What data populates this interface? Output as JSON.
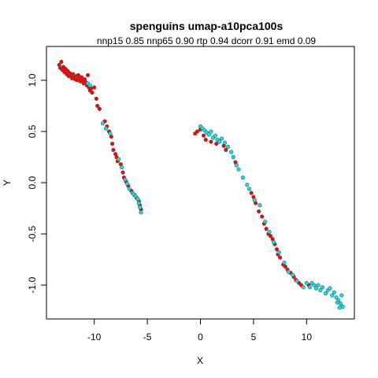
{
  "chart_data": {
    "type": "scatter",
    "title": "spenguins umap-a10pca100s",
    "subtitle": "nnp15 0.85 nnp65 0.90 rtp 0.94 dcorr 0.91 emd 0.09",
    "xlabel": "X",
    "ylabel": "Y",
    "xlim": [
      -14.5,
      14.5
    ],
    "ylim": [
      -1.33,
      1.33
    ],
    "xticks": [
      -10,
      -5,
      0,
      5,
      10
    ],
    "yticks": [
      -1.0,
      -0.5,
      0.0,
      0.5,
      1.0
    ],
    "grid": false,
    "colors": {
      "red": "#ff0000",
      "cyan": "#00e5ee",
      "edge": "#555555"
    },
    "series": [
      {
        "color": "red",
        "points": [
          [
            -13.3,
            1.15
          ],
          [
            -13.2,
            1.12
          ],
          [
            -13.1,
            1.18
          ],
          [
            -13.0,
            1.1
          ],
          [
            -12.9,
            1.13
          ],
          [
            -12.8,
            1.08
          ],
          [
            -12.7,
            1.11
          ],
          [
            -12.6,
            1.06
          ],
          [
            -12.5,
            1.09
          ],
          [
            -12.4,
            1.04
          ],
          [
            -12.3,
            1.07
          ],
          [
            -12.2,
            1.05
          ],
          [
            -12.1,
            1.02
          ],
          [
            -12.0,
            1.06
          ],
          [
            -11.9,
            1.03
          ],
          [
            -11.8,
            1.01
          ],
          [
            -11.7,
            1.04
          ],
          [
            -11.6,
            1.0
          ],
          [
            -11.5,
            1.05
          ],
          [
            -11.4,
            1.02
          ],
          [
            -11.3,
            0.99
          ],
          [
            -11.2,
            1.03
          ],
          [
            -11.1,
            1.0
          ],
          [
            -11.0,
            0.97
          ],
          [
            -10.9,
            1.01
          ],
          [
            -10.8,
            0.98
          ],
          [
            -10.7,
            0.95
          ],
          [
            -10.6,
            1.05
          ],
          [
            -10.5,
            0.93
          ],
          [
            -10.4,
            0.9
          ],
          [
            -10.3,
            0.92
          ],
          [
            -10.2,
            0.88
          ],
          [
            -10.0,
            0.93
          ],
          [
            -9.8,
            0.82
          ],
          [
            -9.7,
            0.75
          ],
          [
            -9.5,
            0.72
          ],
          [
            -9.0,
            0.6
          ],
          [
            -8.8,
            0.55
          ],
          [
            -8.6,
            0.5
          ],
          [
            -8.4,
            0.45
          ],
          [
            -8.3,
            0.38
          ],
          [
            -8.2,
            0.32
          ],
          [
            -8.0,
            0.28
          ],
          [
            -7.9,
            0.25
          ],
          [
            -7.8,
            0.21
          ],
          [
            -7.5,
            0.18
          ],
          [
            -7.3,
            0.1
          ],
          [
            -7.2,
            0.05
          ],
          [
            -7.0,
            0.01
          ],
          [
            -6.8,
            -0.03
          ],
          [
            -6.5,
            -0.08
          ],
          [
            -6.2,
            -0.12
          ],
          [
            -6.0,
            -0.15
          ],
          [
            -5.8,
            -0.18
          ],
          [
            -5.7,
            -0.22
          ],
          [
            -5.6,
            -0.26
          ],
          [
            -0.5,
            0.48
          ],
          [
            -0.3,
            0.5
          ],
          [
            0.0,
            0.52
          ],
          [
            0.3,
            0.46
          ],
          [
            0.5,
            0.42
          ],
          [
            1.0,
            0.4
          ],
          [
            1.5,
            0.38
          ],
          [
            2.2,
            0.36
          ],
          [
            2.4,
            0.32
          ],
          [
            3.3,
            0.2
          ],
          [
            4.8,
            -0.1
          ],
          [
            5.0,
            -0.14
          ],
          [
            5.2,
            -0.2
          ],
          [
            5.5,
            -0.28
          ],
          [
            5.8,
            -0.33
          ],
          [
            6.0,
            -0.4
          ],
          [
            6.2,
            -0.45
          ],
          [
            6.4,
            -0.5
          ],
          [
            6.6,
            -0.52
          ],
          [
            6.8,
            -0.55
          ],
          [
            7.0,
            -0.6
          ],
          [
            7.2,
            -0.65
          ],
          [
            7.3,
            -0.7
          ],
          [
            7.5,
            -0.73
          ],
          [
            7.8,
            -0.8
          ],
          [
            8.0,
            -0.82
          ],
          [
            8.2,
            -0.85
          ],
          [
            8.5,
            -0.88
          ],
          [
            8.8,
            -0.92
          ],
          [
            9.0,
            -0.95
          ],
          [
            9.3,
            -0.98
          ],
          [
            9.5,
            -1.0
          ],
          [
            10.2,
            -1.0
          ]
        ]
      },
      {
        "color": "cyan",
        "points": [
          [
            -10.6,
            0.97
          ],
          [
            -10.4,
            0.95
          ],
          [
            -9.2,
            0.58
          ],
          [
            -8.9,
            0.53
          ],
          [
            -8.5,
            0.48
          ],
          [
            -7.7,
            0.23
          ],
          [
            -7.4,
            0.15
          ],
          [
            -7.1,
            0.03
          ],
          [
            -6.9,
            -0.01
          ],
          [
            -6.7,
            -0.06
          ],
          [
            -6.4,
            -0.1
          ],
          [
            -6.3,
            -0.11
          ],
          [
            -6.1,
            -0.13
          ],
          [
            -5.9,
            -0.16
          ],
          [
            -5.8,
            -0.2
          ],
          [
            -5.7,
            -0.24
          ],
          [
            -5.6,
            -0.29
          ],
          [
            0.0,
            0.55
          ],
          [
            0.2,
            0.53
          ],
          [
            0.4,
            0.51
          ],
          [
            0.6,
            0.49
          ],
          [
            0.8,
            0.47
          ],
          [
            1.0,
            0.5
          ],
          [
            1.2,
            0.44
          ],
          [
            1.4,
            0.46
          ],
          [
            1.6,
            0.42
          ],
          [
            1.8,
            0.4
          ],
          [
            2.0,
            0.43
          ],
          [
            2.3,
            0.39
          ],
          [
            2.6,
            0.35
          ],
          [
            2.9,
            0.3
          ],
          [
            3.1,
            0.25
          ],
          [
            3.4,
            0.17
          ],
          [
            3.6,
            0.13
          ],
          [
            4.0,
            0.05
          ],
          [
            4.4,
            -0.02
          ],
          [
            4.6,
            -0.06
          ],
          [
            5.1,
            -0.17
          ],
          [
            5.6,
            -0.22
          ],
          [
            6.1,
            -0.38
          ],
          [
            6.5,
            -0.48
          ],
          [
            6.9,
            -0.58
          ],
          [
            7.4,
            -0.68
          ],
          [
            7.9,
            -0.78
          ],
          [
            8.3,
            -0.87
          ],
          [
            8.7,
            -0.9
          ],
          [
            9.1,
            -0.96
          ],
          [
            9.7,
            -1.02
          ],
          [
            10.0,
            -0.98
          ],
          [
            10.3,
            -1.02
          ],
          [
            10.5,
            -0.98
          ],
          [
            10.7,
            -1.0
          ],
          [
            10.9,
            -1.03
          ],
          [
            11.1,
            -1.0
          ],
          [
            11.3,
            -1.05
          ],
          [
            11.5,
            -1.02
          ],
          [
            11.8,
            -1.08
          ],
          [
            12.0,
            -1.05
          ],
          [
            12.2,
            -1.03
          ],
          [
            12.4,
            -1.1
          ],
          [
            12.6,
            -1.07
          ],
          [
            12.8,
            -1.12
          ],
          [
            13.0,
            -1.15
          ],
          [
            13.2,
            -1.18
          ],
          [
            13.3,
            -1.1
          ],
          [
            13.4,
            -1.21
          ],
          [
            13.1,
            -1.22
          ],
          [
            12.9,
            -1.17
          ]
        ]
      }
    ]
  }
}
